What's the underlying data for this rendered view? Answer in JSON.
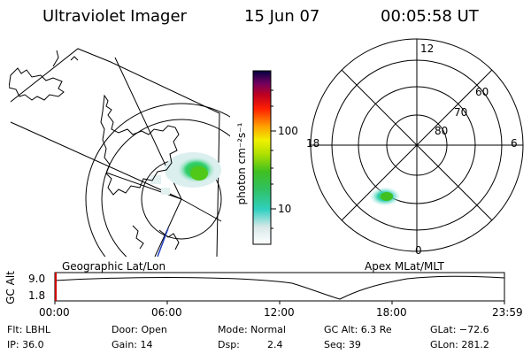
{
  "header": {
    "instrument": "Ultraviolet Imager",
    "date": "15 Jun 07",
    "time": "00:05:58 UT"
  },
  "left_map": {
    "label": "Geographic Lat/Lon"
  },
  "right_map": {
    "label": "Apex MLat/MLT",
    "mlt_labels": {
      "top": "12",
      "left": "18",
      "right": "6",
      "bottom": "0"
    },
    "lat_labels": [
      "60",
      "70",
      "80"
    ]
  },
  "colorbar": {
    "unit_label": "photon cm⁻²s⁻¹",
    "ticks": [
      "100",
      "10"
    ]
  },
  "altitude_plot": {
    "ylabel": "GC Alt",
    "yticks": [
      "9.0",
      "1.8"
    ],
    "xticks": [
      "00:00",
      "06:00",
      "12:00",
      "18:00",
      "23:59"
    ]
  },
  "info": {
    "row1": [
      "Flt: LBHL",
      "Door: Open",
      "Mode: Normal",
      "GC Alt: 6.3 Re",
      "GLat: −72.6"
    ],
    "row2": [
      "IP: 36.0",
      "Gain: 14",
      "Dsp:",
      "2.4",
      "Seq: 39",
      "GLon: 281.2"
    ]
  },
  "colors": {
    "aurora_core": "#3fd23f",
    "aurora_edge": "#30d0c0",
    "marker": "#d00000"
  }
}
